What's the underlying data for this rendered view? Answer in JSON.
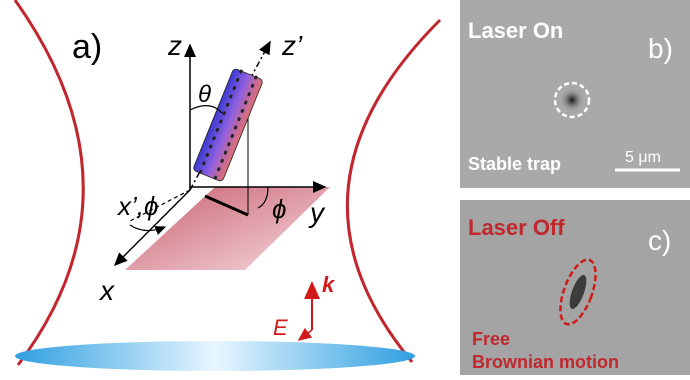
{
  "panel_a": {
    "label": "a)",
    "z": "z",
    "z_prime": "z’",
    "theta": "θ",
    "x_prime_phi": "x’,ϕ",
    "phi": "ϕ",
    "y": "y",
    "x": "x",
    "k": "k",
    "E": "E"
  },
  "panel_b": {
    "title": "Laser On",
    "label": "b)",
    "caption": "Stable trap",
    "scale": "5 μm"
  },
  "panel_c": {
    "title": "Laser Off",
    "label": "c)",
    "caption_line1": "Free",
    "caption_line2": "Brownian motion"
  }
}
